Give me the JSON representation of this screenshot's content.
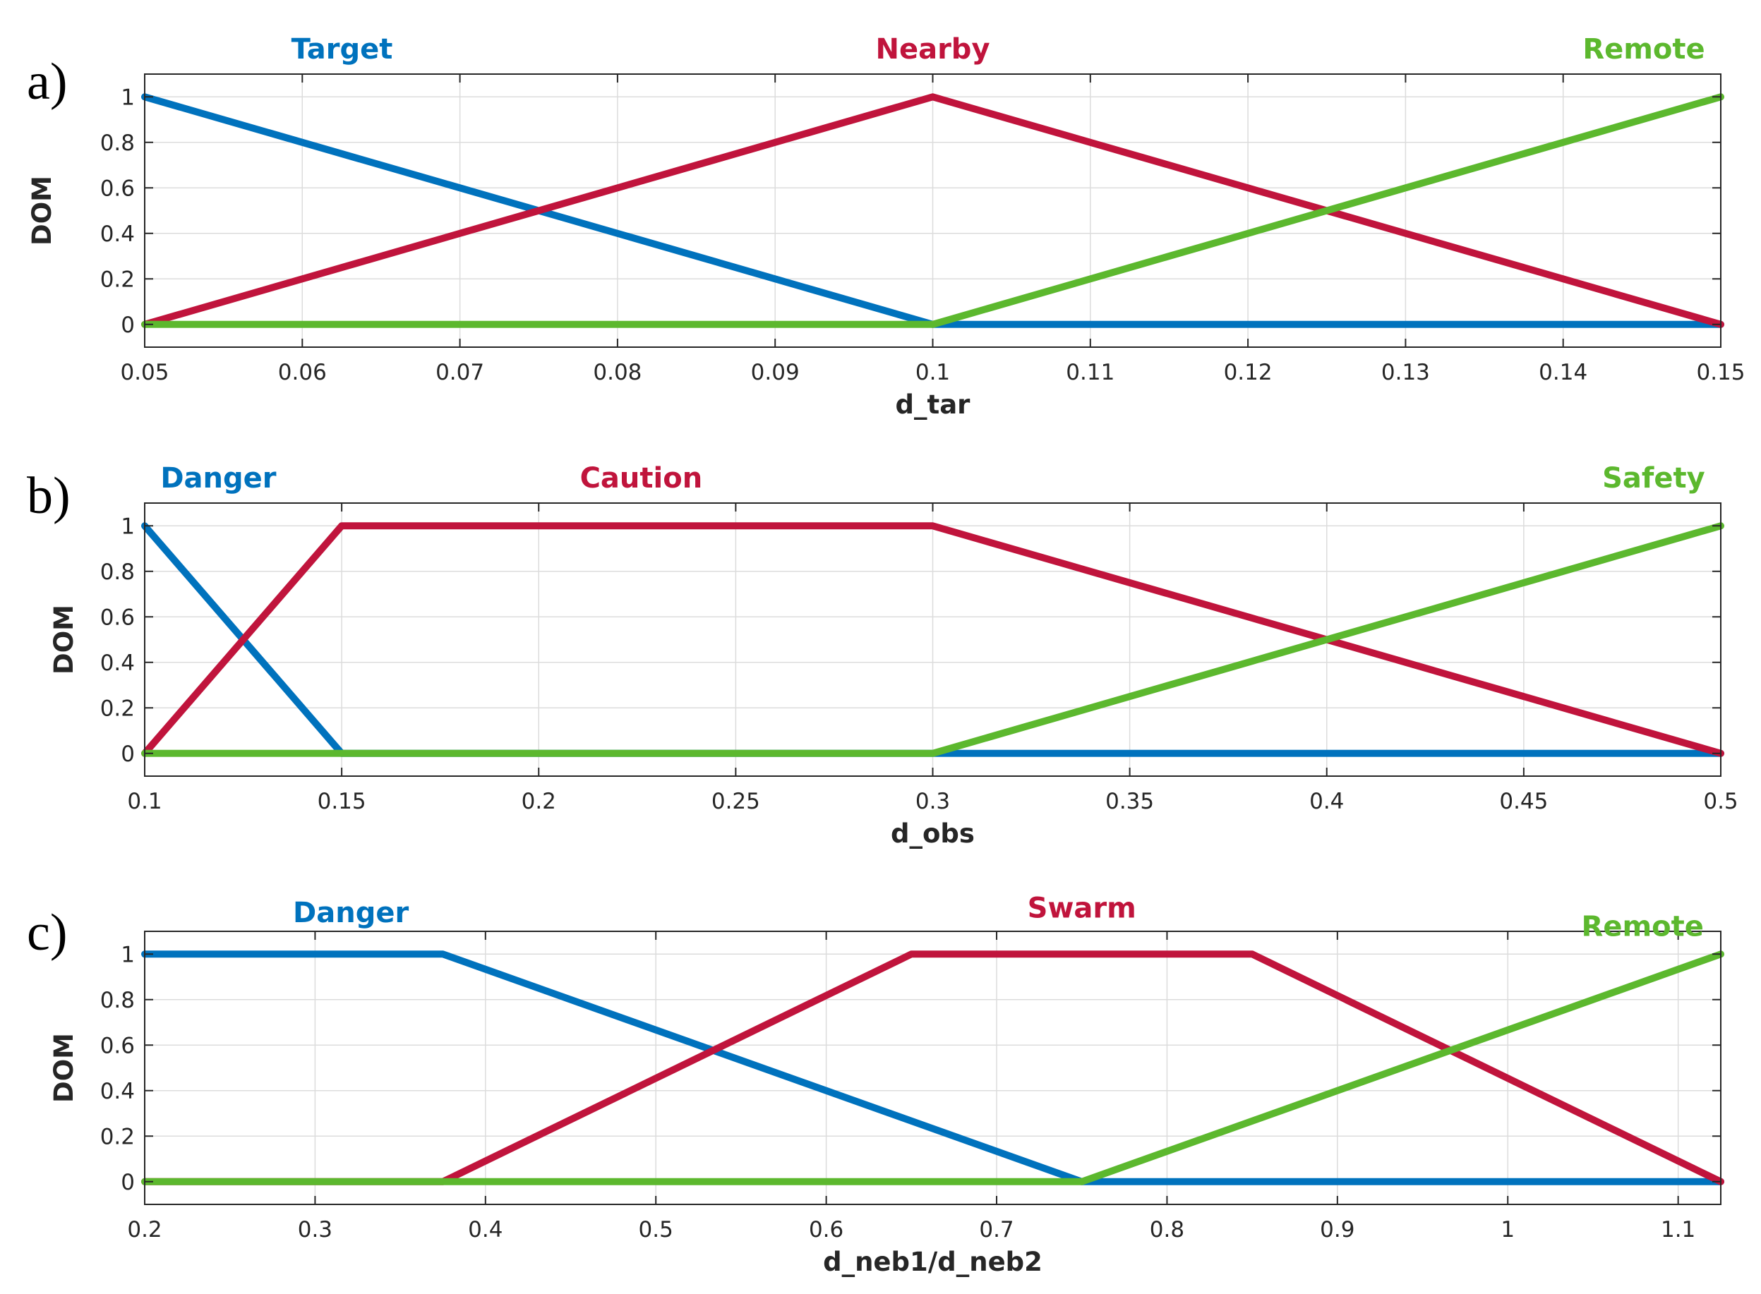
{
  "colors": {
    "blue": "#0072BD",
    "red": "#C0143C",
    "green": "#5CB82E"
  },
  "chart_data": [
    {
      "type": "line",
      "panel_label": "a)",
      "xlabel": "d_tar",
      "ylabel": "DOM",
      "xlim": [
        0.05,
        0.15
      ],
      "ylim": [
        -0.1,
        1.1
      ],
      "grid": true,
      "xticks": [
        0.05,
        0.06,
        0.07,
        0.08,
        0.09,
        0.1,
        0.11,
        0.12,
        0.13,
        0.14,
        0.15
      ],
      "xtick_labels": [
        "0.05",
        "0.06",
        "0.07",
        "0.08",
        "0.09",
        "0.1",
        "0.11",
        "0.12",
        "0.13",
        "0.14",
        "0.15"
      ],
      "yticks": [
        0,
        0.2,
        0.4,
        0.6,
        0.8,
        1
      ],
      "ytick_labels": [
        "0",
        "0.2",
        "0.4",
        "0.6",
        "0.8",
        "1"
      ],
      "series": [
        {
          "name": "Target",
          "color": "#0072BD",
          "x": [
            0.05,
            0.1,
            0.15
          ],
          "y": [
            1,
            0,
            0
          ],
          "label_x": 0.0593,
          "label_anchor": "start"
        },
        {
          "name": "Nearby",
          "color": "#C0143C",
          "x": [
            0.05,
            0.1,
            0.15
          ],
          "y": [
            0,
            1,
            0
          ],
          "label_x": 0.1,
          "label_anchor": "middle"
        },
        {
          "name": "Remote",
          "color": "#5CB82E",
          "x": [
            0.05,
            0.1,
            0.15
          ],
          "y": [
            0,
            0,
            1
          ],
          "label_x": 0.149,
          "label_anchor": "end"
        }
      ]
    },
    {
      "type": "line",
      "panel_label": "b)",
      "xlabel": "d_obs",
      "ylabel": "DOM",
      "xlim": [
        0.1,
        0.5
      ],
      "ylim": [
        -0.1,
        1.1
      ],
      "grid": true,
      "xticks": [
        0.1,
        0.15,
        0.2,
        0.25,
        0.3,
        0.35,
        0.4,
        0.45,
        0.5
      ],
      "xtick_labels": [
        "0.1",
        "0.15",
        "0.2",
        "0.25",
        "0.3",
        "0.35",
        "0.4",
        "0.45",
        "0.5"
      ],
      "yticks": [
        0,
        0.2,
        0.4,
        0.6,
        0.8,
        1
      ],
      "ytick_labels": [
        "0",
        "0.2",
        "0.4",
        "0.6",
        "0.8",
        "1"
      ],
      "series": [
        {
          "name": "Danger",
          "color": "#0072BD",
          "x": [
            0.1,
            0.15,
            0.5
          ],
          "y": [
            1,
            0,
            0
          ],
          "label_x": 0.104,
          "label_anchor": "start"
        },
        {
          "name": "Caution",
          "color": "#C0143C",
          "x": [
            0.1,
            0.15,
            0.3,
            0.5
          ],
          "y": [
            0,
            1,
            1,
            0
          ],
          "label_x": 0.226,
          "label_anchor": "middle"
        },
        {
          "name": "Safety",
          "color": "#5CB82E",
          "x": [
            0.1,
            0.3,
            0.5
          ],
          "y": [
            0,
            0,
            1
          ],
          "label_x": 0.496,
          "label_anchor": "end"
        }
      ]
    },
    {
      "type": "line",
      "panel_label": "c)",
      "xlabel": "d_neb1/d_neb2",
      "ylabel": "DOM",
      "xlim": [
        0.2,
        1.125
      ],
      "ylim": [
        -0.1,
        1.1
      ],
      "grid": true,
      "xticks": [
        0.2,
        0.3,
        0.4,
        0.5,
        0.6,
        0.7,
        0.8,
        0.9,
        1,
        1.1
      ],
      "xtick_labels": [
        "0.2",
        "0.3",
        "0.4",
        "0.5",
        "0.6",
        "0.7",
        "0.8",
        "0.9",
        "1",
        "1.1"
      ],
      "yticks": [
        0,
        0.2,
        0.4,
        0.6,
        0.8,
        1
      ],
      "ytick_labels": [
        "0",
        "0.2",
        "0.4",
        "0.6",
        "0.8",
        "1"
      ],
      "series": [
        {
          "name": "Danger",
          "color": "#0072BD",
          "x": [
            0.2,
            0.375,
            0.75,
            1.125
          ],
          "y": [
            1,
            1,
            0,
            0
          ],
          "label_x": 0.287,
          "label_anchor": "start",
          "label_y": 1.14
        },
        {
          "name": "Swarm",
          "color": "#C0143C",
          "x": [
            0.2,
            0.375,
            0.65,
            0.85,
            1.125
          ],
          "y": [
            0,
            0,
            1,
            1,
            0
          ],
          "label_x": 0.75,
          "label_anchor": "middle",
          "label_y": 1.16
        },
        {
          "name": "Remote",
          "color": "#5CB82E",
          "x": [
            0.2,
            0.75,
            1.125
          ],
          "y": [
            0,
            0,
            1
          ],
          "label_x": 1.115,
          "label_anchor": "end",
          "label_y": 1.08
        }
      ]
    }
  ]
}
